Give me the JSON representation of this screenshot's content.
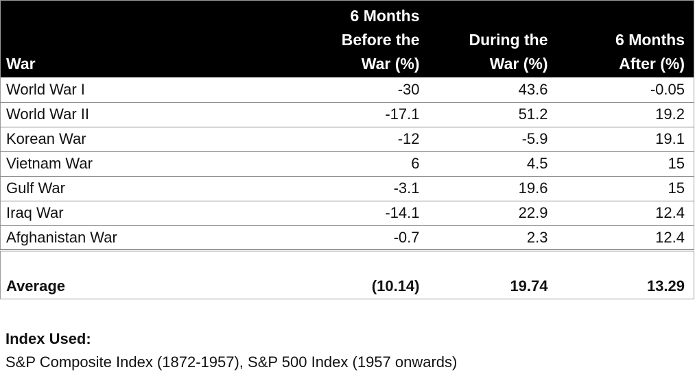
{
  "chart_data": {
    "type": "table",
    "columns": [
      {
        "key": "war",
        "lines": [
          "War"
        ]
      },
      {
        "key": "before",
        "lines": [
          "6 Months",
          "Before the",
          "War (%)"
        ]
      },
      {
        "key": "during",
        "lines": [
          "During the",
          "War (%)"
        ]
      },
      {
        "key": "after",
        "lines": [
          "6 Months",
          "After (%)"
        ]
      }
    ],
    "rows": [
      [
        "World War I",
        "-30",
        "43.6",
        "-0.05"
      ],
      [
        "World War II",
        "-17.1",
        "51.2",
        "19.2"
      ],
      [
        "Korean War",
        "-12",
        "-5.9",
        "19.1"
      ],
      [
        "Vietnam War",
        "6",
        "4.5",
        "15"
      ],
      [
        "Gulf War",
        "-3.1",
        "19.6",
        "15"
      ],
      [
        "Iraq War",
        "-14.1",
        "22.9",
        "12.4"
      ],
      [
        "Afghanistan War",
        "-0.7",
        "2.3",
        "12.4"
      ]
    ],
    "average": [
      "Average",
      "(10.14)",
      "19.74",
      "13.29"
    ]
  },
  "note": {
    "title": "Index Used:",
    "body": "S&P Composite Index (1872-1957), S&P 500 Index (1957 onwards)"
  }
}
